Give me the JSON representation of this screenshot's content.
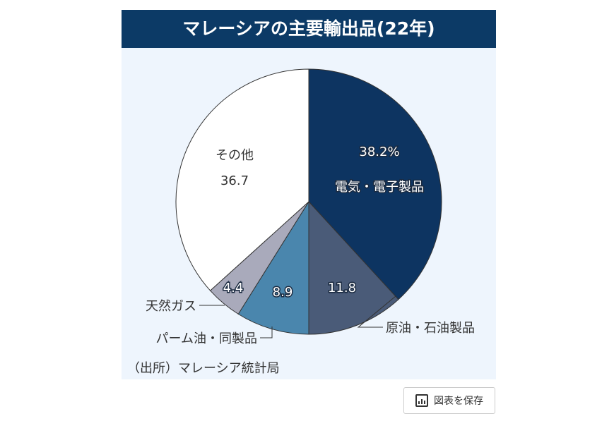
{
  "chart_data": {
    "type": "pie",
    "title": "マレーシアの主要輸出品(22年)",
    "slices": [
      {
        "label": "電気・電子製品",
        "value": 38.2,
        "display": "38.2%",
        "color": "#0d3461"
      },
      {
        "label": "原油・石油製品",
        "value": 11.8,
        "display": "11.8",
        "color": "#4a5b78"
      },
      {
        "label": "パーム油・同製品",
        "value": 8.9,
        "display": "8.9",
        "color": "#4a86ad"
      },
      {
        "label": "天然ガス",
        "value": 4.4,
        "display": "4.4",
        "color": "#a9aabb"
      },
      {
        "label": "その他",
        "value": 36.7,
        "display": "36.7",
        "color": "#ffffff"
      }
    ],
    "source": "（出所）マレーシア統計局",
    "start": "top",
    "direction": "clockwise"
  },
  "save_button": {
    "label": "図表を保存",
    "icon": "bar-chart-icon"
  }
}
